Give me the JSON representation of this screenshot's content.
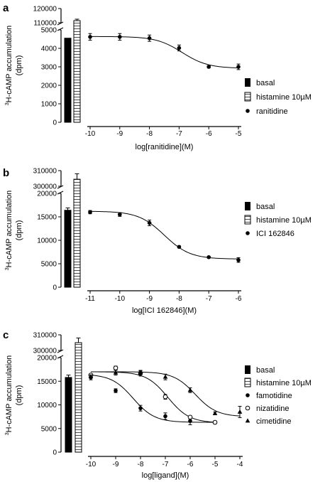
{
  "chart_data": [
    {
      "type": "scatter",
      "panel": "a",
      "ylabel_sup": "3",
      "ylabel_main": "H-cAMP accumulation",
      "ylabel_unit": "(dpm)",
      "xlabel": "log[ranitidine](M)",
      "x_ticks": [
        "-10",
        "-9",
        "-8",
        "-7",
        "-6",
        "-5"
      ],
      "y_ticks_lower": [
        "0",
        "1000",
        "2000",
        "3000",
        "4000",
        "5000"
      ],
      "y_ticks_upper": [
        "110000",
        "120000"
      ],
      "bars": [
        {
          "name": "basal",
          "value": 4550,
          "error": 0,
          "fill": "solid"
        },
        {
          "name": "histamine 10µM",
          "value": 111500,
          "error": 1000,
          "fill": "hatched"
        }
      ],
      "series": [
        {
          "name": "ranitidine",
          "marker": "filled-circle",
          "x": [
            -10,
            -9,
            -8,
            -7,
            -6,
            -5
          ],
          "y": [
            4620,
            4620,
            4550,
            4020,
            3000,
            3000
          ],
          "yerr": [
            180,
            180,
            170,
            160,
            60,
            150
          ],
          "fit": {
            "top": 4640,
            "bottom": 2920,
            "logec50": -6.9,
            "hill": 1
          }
        }
      ],
      "legend": [
        "basal",
        "histamine 10µM",
        "ranitidine"
      ]
    },
    {
      "type": "scatter",
      "panel": "b",
      "ylabel_sup": "3",
      "ylabel_main": "H-cAMP accumulation",
      "ylabel_unit": "(dpm)",
      "xlabel": "log[ICI 162846](M)",
      "x_ticks": [
        "-11",
        "-10",
        "-9",
        "-8",
        "-7",
        "-6"
      ],
      "y_ticks_lower": [
        "0",
        "5000",
        "10000",
        "15000",
        "20000"
      ],
      "y_ticks_upper": [
        "300000",
        "310000"
      ],
      "bars": [
        {
          "name": "basal",
          "value": 16400,
          "error": 500,
          "fill": "solid"
        },
        {
          "name": "histamine 10µM",
          "value": 304500,
          "error": 3500,
          "fill": "hatched"
        }
      ],
      "series": [
        {
          "name": "ICI 162846",
          "marker": "filled-circle",
          "x": [
            -11,
            -10,
            -9,
            -8,
            -7,
            -6
          ],
          "y": [
            16000,
            15500,
            13700,
            8600,
            6400,
            5800
          ],
          "yerr": [
            350,
            400,
            600,
            200,
            150,
            500
          ],
          "fit": {
            "top": 16200,
            "bottom": 6000,
            "logec50": -8.5,
            "hill": 1
          }
        }
      ],
      "legend": [
        "basal",
        "histamine 10µM",
        "ICI 162846"
      ]
    },
    {
      "type": "scatter",
      "panel": "c",
      "ylabel_sup": "3",
      "ylabel_main": "H-cAMP accumulation",
      "ylabel_unit": "(dpm)",
      "xlabel": "log[ligand](M)",
      "x_ticks": [
        "-10",
        "-9",
        "-8",
        "-7",
        "-6",
        "-5",
        "-4"
      ],
      "y_ticks_lower": [
        "0",
        "5000",
        "10000",
        "15000",
        "20000"
      ],
      "y_ticks_upper": [
        "300000",
        "310000"
      ],
      "bars": [
        {
          "name": "basal",
          "value": 15800,
          "error": 500,
          "fill": "solid"
        },
        {
          "name": "histamine 10µM",
          "value": 305000,
          "error": 3000,
          "fill": "hatched"
        }
      ],
      "series": [
        {
          "name": "famotidine",
          "marker": "filled-circle",
          "x": [
            -10,
            -9,
            -8,
            -7,
            -6,
            -5
          ],
          "y": [
            15800,
            13000,
            9300,
            7600,
            6600,
            6300
          ],
          "yerr": [
            500,
            400,
            600,
            700,
            800,
            300
          ],
          "fit": {
            "top": 16500,
            "bottom": 6300,
            "logec50": -8.3,
            "hill": 1
          }
        },
        {
          "name": "nizatidine",
          "marker": "open-circle",
          "x": [
            -10,
            -9,
            -8,
            -7,
            -6,
            -5
          ],
          "y": [
            16300,
            17800,
            16700,
            11700,
            7400,
            6300
          ],
          "yerr": [
            300,
            400,
            600,
            500,
            300,
            200
          ],
          "fit": {
            "top": 17000,
            "bottom": 6200,
            "logec50": -6.9,
            "hill": 1
          }
        },
        {
          "name": "cimetidine",
          "marker": "filled-triangle",
          "x": [
            -10,
            -9,
            -8,
            -7,
            -6,
            -5,
            -4
          ],
          "y": [
            16000,
            16800,
            16800,
            15900,
            13100,
            8200,
            8500
          ],
          "yerr": [
            300,
            500,
            400,
            600,
            500,
            300,
            1200
          ],
          "fit": {
            "top": 17000,
            "bottom": 7500,
            "logec50": -5.8,
            "hill": 1
          }
        }
      ],
      "legend": [
        "basal",
        "histamine 10µM",
        "famotidine",
        "nizatidine",
        "cimetidine"
      ]
    }
  ]
}
